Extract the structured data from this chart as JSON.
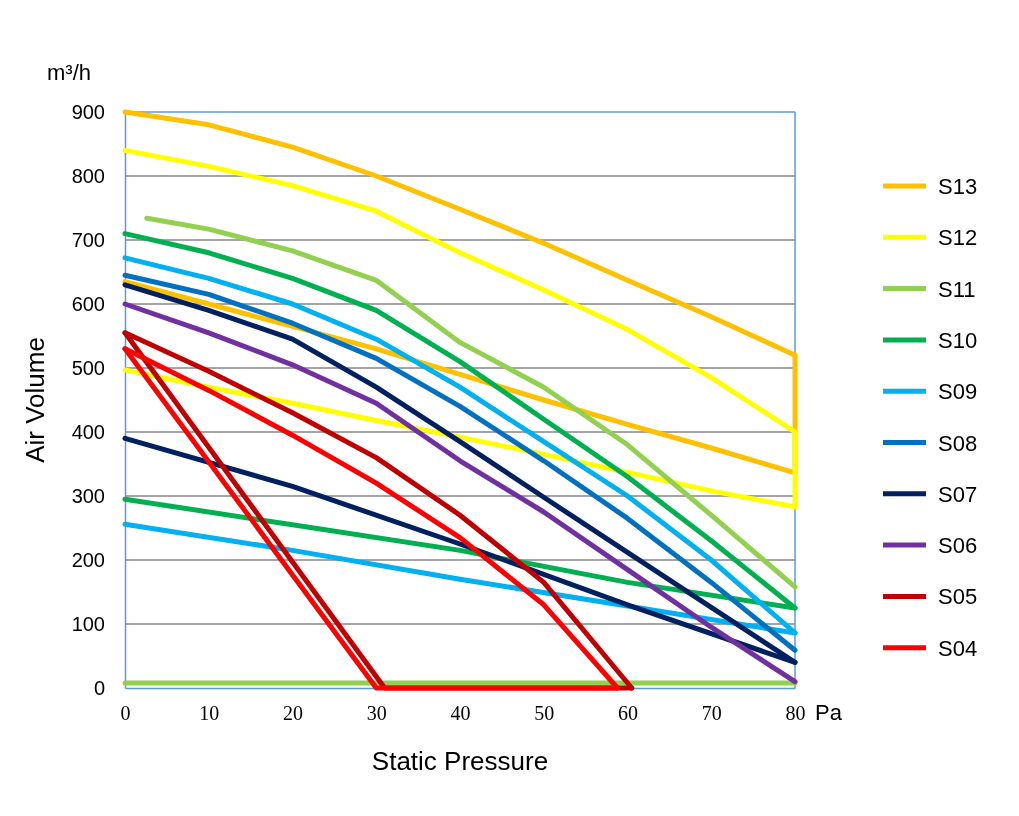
{
  "chart_data": {
    "type": "line",
    "xlabel": "Static Pressure",
    "ylabel": "Air Volume",
    "annotations": [
      "m³/h",
      "Pa"
    ],
    "xlim": [
      0,
      80
    ],
    "ylim": [
      0,
      900
    ],
    "xticks": [
      0,
      10,
      20,
      30,
      40,
      50,
      60,
      70,
      80
    ],
    "yticks": [
      0,
      100,
      200,
      300,
      400,
      500,
      600,
      700,
      800,
      900
    ],
    "grid": "y",
    "legend": "right",
    "series": [
      {
        "name": "S13",
        "color": "#ffc000",
        "x": [
          0,
          10,
          20,
          30,
          40,
          50,
          60,
          70,
          80
        ],
        "values": [
          900,
          880,
          845,
          800,
          748,
          695,
          637,
          580,
          520
        ]
      },
      {
        "color": "#ffc000",
        "x": [
          0,
          10,
          20,
          30,
          40,
          50,
          60,
          70,
          80,
          80
        ],
        "values": [
          635,
          600,
          565,
          530,
          490,
          450,
          412,
          375,
          336,
          520
        ]
      },
      {
        "name": "S12",
        "color": "#ffff00",
        "x": [
          0,
          10,
          20,
          30,
          40,
          50,
          60,
          70,
          80
        ],
        "values": [
          840,
          815,
          785,
          745,
          680,
          622,
          560,
          485,
          400
        ]
      },
      {
        "color": "#ffff00",
        "x": [
          0,
          10,
          20,
          30,
          40,
          50,
          60,
          70,
          80,
          80
        ],
        "values": [
          497,
          470,
          445,
          418,
          392,
          365,
          337,
          308,
          283,
          400
        ]
      },
      {
        "name": "S11",
        "color": "#92d050",
        "x": [
          2.6,
          10,
          20,
          30,
          40,
          50,
          60,
          70,
          80
        ],
        "values": [
          734,
          717,
          683,
          637,
          540,
          470,
          380,
          270,
          158
        ]
      },
      {
        "color": "#92d050",
        "x": [
          0,
          80
        ],
        "values": [
          8,
          8
        ]
      },
      {
        "name": "S10",
        "color": "#00b050",
        "x": [
          0,
          10,
          20,
          30,
          40,
          50,
          60,
          70,
          80
        ],
        "values": [
          710,
          680,
          640,
          590,
          510,
          420,
          330,
          230,
          125
        ]
      },
      {
        "color": "#00b050",
        "x": [
          0,
          20,
          40,
          60,
          80
        ],
        "values": [
          295,
          255,
          215,
          165,
          125
        ]
      },
      {
        "name": "S09",
        "color": "#00b0f0",
        "x": [
          0,
          10,
          20,
          30,
          40,
          50,
          60,
          70,
          80
        ],
        "values": [
          672,
          640,
          600,
          545,
          470,
          385,
          300,
          200,
          86
        ]
      },
      {
        "color": "#00b0f0",
        "x": [
          0,
          20,
          40,
          60,
          80
        ],
        "values": [
          256,
          215,
          170,
          128,
          86
        ]
      },
      {
        "name": "S08",
        "color": "#0070c0",
        "x": [
          0,
          10,
          20,
          30,
          40,
          50,
          60,
          70,
          80
        ],
        "values": [
          645,
          615,
          570,
          515,
          440,
          355,
          265,
          165,
          59
        ]
      },
      {
        "name": "S07",
        "color": "#002060",
        "x": [
          0,
          10,
          20,
          30,
          40,
          50,
          60,
          70,
          80
        ],
        "values": [
          630,
          590,
          545,
          470,
          385,
          298,
          212,
          126,
          40
        ]
      },
      {
        "color": "#002060",
        "x": [
          0,
          20,
          40,
          60,
          80
        ],
        "values": [
          390,
          315,
          225,
          130,
          40
        ]
      },
      {
        "name": "S06",
        "color": "#7030a0",
        "x": [
          0,
          10,
          20,
          30,
          40,
          50,
          60,
          70,
          80
        ],
        "values": [
          600,
          555,
          505,
          445,
          355,
          275,
          185,
          95,
          10
        ]
      },
      {
        "name": "S05",
        "color": "#c00000",
        "x": [
          0,
          10,
          20,
          30,
          40,
          50,
          60.5
        ],
        "values": [
          555,
          495,
          430,
          360,
          270,
          165,
          0
        ]
      },
      {
        "color": "#c00000",
        "x": [
          0,
          31,
          60.5
        ],
        "values": [
          555,
          0,
          0
        ]
      },
      {
        "name": "S04",
        "color": "#ff0000",
        "x": [
          0,
          10,
          20,
          30,
          40,
          50,
          58.8
        ],
        "values": [
          530,
          465,
          395,
          320,
          235,
          130,
          0
        ]
      },
      {
        "color": "#ff0000",
        "x": [
          0,
          30,
          58.8
        ],
        "values": [
          530,
          0,
          0
        ]
      }
    ]
  }
}
